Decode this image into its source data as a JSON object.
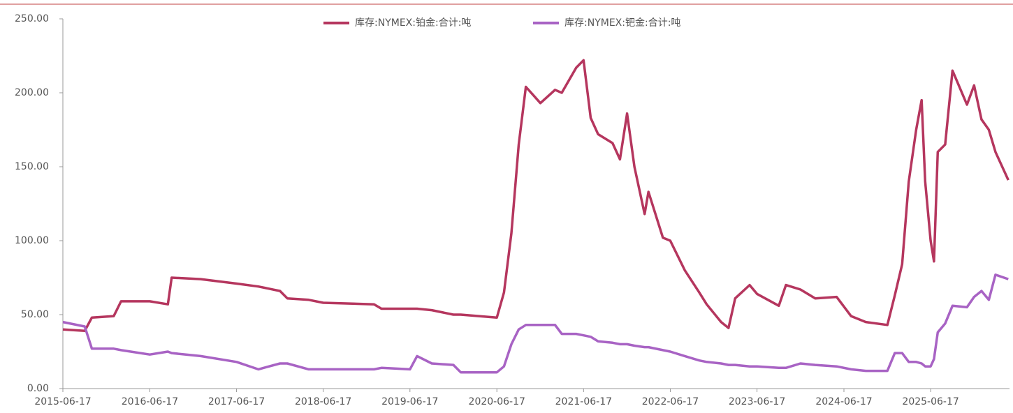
{
  "chart_data": {
    "type": "line",
    "x": [
      "2015-06-17",
      "2015-09-17",
      "2015-10-17",
      "2016-01-17",
      "2016-02-17",
      "2016-06-17",
      "2016-09-01",
      "2016-09-17",
      "2017-01-17",
      "2017-06-17",
      "2017-09-17",
      "2017-12-17",
      "2018-01-17",
      "2018-04-17",
      "2018-06-17",
      "2019-01-17",
      "2019-02-17",
      "2019-06-17",
      "2019-07-17",
      "2019-09-17",
      "2019-12-17",
      "2020-01-17",
      "2020-06-17",
      "2020-07-17",
      "2020-08-17",
      "2020-09-17",
      "2020-10-17",
      "2020-12-17",
      "2021-02-17",
      "2021-03-17",
      "2021-05-17",
      "2021-06-17",
      "2021-07-17",
      "2021-08-17",
      "2021-10-17",
      "2021-11-17",
      "2021-12-17",
      "2022-01-17",
      "2022-03-01",
      "2022-03-17",
      "2022-05-17",
      "2022-06-17",
      "2022-08-17",
      "2022-10-17",
      "2022-11-17",
      "2023-01-17",
      "2023-02-17",
      "2023-03-17",
      "2023-05-17",
      "2023-06-17",
      "2023-09-17",
      "2023-10-17",
      "2023-12-17",
      "2024-02-17",
      "2024-05-17",
      "2024-07-17",
      "2024-09-17",
      "2024-12-17",
      "2025-01-17",
      "2025-02-17",
      "2025-03-17",
      "2025-04-17",
      "2025-05-10",
      "2025-05-25",
      "2025-06-17",
      "2025-07-01",
      "2025-07-17",
      "2025-08-17",
      "2025-09-17",
      "2025-11-17",
      "2025-12-17",
      "2026-01-17",
      "2026-02-17",
      "2026-03-17",
      "2026-05-10"
    ],
    "series": [
      {
        "name": "库存:NYMEX:铂金:合计:吨",
        "color": "#b5365e",
        "values": [
          40,
          39,
          48,
          49,
          59,
          59,
          57,
          75,
          74,
          71,
          69,
          66,
          61,
          60,
          58,
          57,
          54,
          54,
          54,
          53,
          50,
          50,
          48,
          65,
          105,
          165,
          204,
          193,
          202,
          200,
          217,
          222,
          183,
          172,
          166,
          155,
          186,
          150,
          118,
          133,
          102,
          100,
          80,
          65,
          57,
          45,
          41,
          61,
          70,
          64,
          56,
          70,
          67,
          61,
          62,
          49,
          45,
          43,
          63,
          84,
          140,
          175,
          195,
          140,
          100,
          86,
          160,
          165,
          215,
          192,
          205,
          182,
          175,
          160,
          141
        ]
      },
      {
        "name": "库存:NYMEX:钯金:合计:吨",
        "color": "#a863c4",
        "values": [
          45,
          42,
          27,
          27,
          26,
          23,
          25,
          24,
          22,
          18,
          13,
          17,
          17,
          13,
          13,
          13,
          14,
          13,
          22,
          17,
          16,
          11,
          11,
          15,
          30,
          40,
          43,
          43,
          43,
          37,
          37,
          36,
          35,
          32,
          31,
          30,
          30,
          29,
          28,
          28,
          26,
          25,
          22,
          19,
          18,
          17,
          16,
          16,
          15,
          15,
          14,
          14,
          17,
          16,
          15,
          13,
          12,
          12,
          24,
          24,
          18,
          18,
          17,
          15,
          15,
          20,
          38,
          44,
          56,
          55,
          62,
          66,
          60,
          77,
          74
        ]
      }
    ],
    "xlim": [
      "2015-06-17",
      "2026-05-15"
    ],
    "xticks": [
      "2015-06-17",
      "2016-06-17",
      "2017-06-17",
      "2018-06-17",
      "2019-06-17",
      "2020-06-17",
      "2021-06-17",
      "2022-06-17",
      "2023-06-17",
      "2024-06-17",
      "2025-06-17"
    ],
    "ylim": [
      0,
      250
    ],
    "yticks": [
      {
        "value": 0,
        "label": "0.00"
      },
      {
        "value": 50,
        "label": "50.00"
      },
      {
        "value": 100,
        "label": "100.00"
      },
      {
        "value": 150,
        "label": "150.00"
      },
      {
        "value": 200,
        "label": "200.00"
      },
      {
        "value": 250,
        "label": "250.00"
      }
    ],
    "legend": "top"
  }
}
